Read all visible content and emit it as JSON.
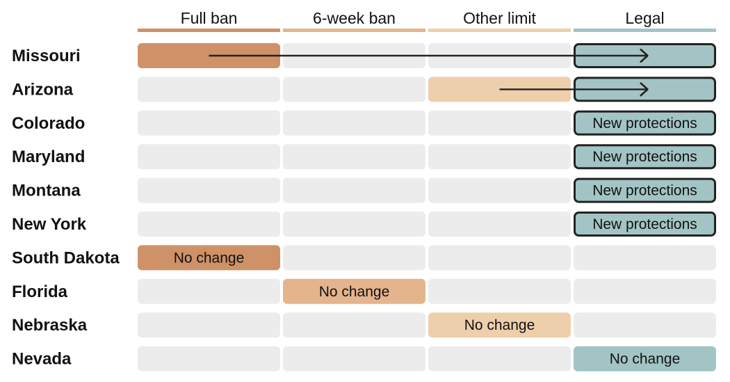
{
  "chart_data": {
    "type": "table",
    "columns": [
      {
        "key": "full_ban",
        "label": "Full ban",
        "color": "#cf9167"
      },
      {
        "key": "six_week_ban",
        "label": "6-week ban",
        "color": "#e4b48d"
      },
      {
        "key": "other_limit",
        "label": "Other limit",
        "color": "#eecfab"
      },
      {
        "key": "legal",
        "label": "Legal",
        "color": "#a3c4c4"
      }
    ],
    "empty_cell_color": "#ececec",
    "rows": [
      {
        "state": "Missouri",
        "from": "full_ban",
        "to": "legal",
        "label": ""
      },
      {
        "state": "Arizona",
        "from": "other_limit",
        "to": "legal",
        "label": ""
      },
      {
        "state": "Colorado",
        "from": "legal",
        "to": "legal",
        "label": "New protections"
      },
      {
        "state": "Maryland",
        "from": "legal",
        "to": "legal",
        "label": "New protections"
      },
      {
        "state": "Montana",
        "from": "legal",
        "to": "legal",
        "label": "New protections"
      },
      {
        "state": "New York",
        "from": "legal",
        "to": "legal",
        "label": "New protections"
      },
      {
        "state": "South Dakota",
        "from": "full_ban",
        "to": null,
        "label": "No change"
      },
      {
        "state": "Florida",
        "from": "six_week_ban",
        "to": null,
        "label": "No change"
      },
      {
        "state": "Nebraska",
        "from": "other_limit",
        "to": null,
        "label": "No change"
      },
      {
        "state": "Nevada",
        "from": "legal",
        "to": null,
        "label": "No change"
      }
    ]
  }
}
